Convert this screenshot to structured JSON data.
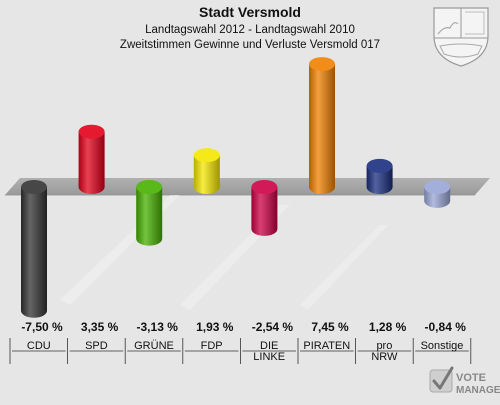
{
  "header": {
    "title": "Stadt Versmold",
    "subtitle": "Landtagswahl 2012 - Landtagswahl 2010",
    "subtitle2": "Zweitstimmen Gewinne und Verluste Versmold 017"
  },
  "branding": {
    "logo_text_top": "VOTE",
    "logo_text_bottom": "MANAGER"
  },
  "chart_data": {
    "type": "bar",
    "title": "Stadt Versmold",
    "subtitle": "Landtagswahl 2012 - Landtagswahl 2010",
    "subtitle2": "Zweitstimmen Gewinne und Verluste Versmold 017",
    "categories": [
      "CDU",
      "SPD",
      "GRÜNE",
      "FDP",
      "DIE LINKE",
      "PIRATEN",
      "pro NRW",
      "Sonstige"
    ],
    "category_lines": [
      [
        "CDU"
      ],
      [
        "SPD"
      ],
      [
        "GRÜNE"
      ],
      [
        "FDP"
      ],
      [
        "DIE",
        "LINKE"
      ],
      [
        "PIRATEN"
      ],
      [
        "pro",
        "NRW"
      ],
      [
        "Sonstige"
      ]
    ],
    "values": [
      -7.5,
      3.35,
      -3.13,
      1.93,
      -2.54,
      7.45,
      1.28,
      -0.84
    ],
    "value_labels": [
      "-7,50 %",
      "3,35 %",
      "-3,13 %",
      "1,93 %",
      "-2,54 %",
      "7,45 %",
      "1,28 %",
      "-0,84 %"
    ],
    "colors": [
      "#333333",
      "#e2001a",
      "#46b000",
      "#f5e600",
      "#cc0044",
      "#f08000",
      "#1a2e80",
      "#99a6d6"
    ],
    "xlabel": "",
    "ylabel": "",
    "ylim": [
      -7.5,
      7.45
    ],
    "grid": false,
    "legend": "none"
  }
}
